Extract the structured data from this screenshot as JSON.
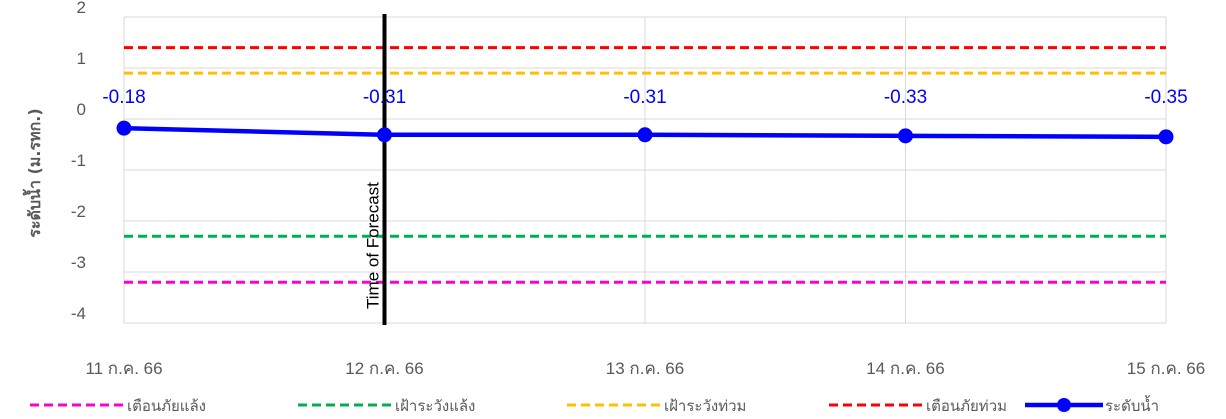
{
  "chart_data": {
    "type": "line",
    "title": "",
    "xlabel": "",
    "ylabel": "ระดับน้ำ (ม.รทก.)",
    "categories": [
      "11 ก.ค. 66",
      "12 ก.ค. 66",
      "13 ก.ค. 66",
      "14 ก.ค. 66",
      "15 ก.ค. 66"
    ],
    "ylim": [
      -4,
      2
    ],
    "yticks": [
      2,
      1,
      0,
      -1,
      -2,
      -3,
      -4
    ],
    "grid": true,
    "legend_position": "bottom",
    "series": [
      {
        "name": "เตือนภัยแล้ง",
        "values": [
          -3.2,
          -3.2,
          -3.2,
          -3.2,
          -3.2
        ],
        "color": "#ff00cc",
        "style": "dashed"
      },
      {
        "name": "เฝ้าระวังแล้ง",
        "values": [
          -2.3,
          -2.3,
          -2.3,
          -2.3,
          -2.3
        ],
        "color": "#00b050",
        "style": "dashed"
      },
      {
        "name": "เฝ้าระวังท่วม",
        "values": [
          0.9,
          0.9,
          0.9,
          0.9,
          0.9
        ],
        "color": "#ffc000",
        "style": "dashed"
      },
      {
        "name": "เตือนภัยท่วม",
        "values": [
          1.4,
          1.4,
          1.4,
          1.4,
          1.4
        ],
        "color": "#ff0000",
        "style": "dashed"
      },
      {
        "name": "ระดับน้ำ",
        "values": [
          -0.18,
          -0.31,
          -0.31,
          -0.33,
          -0.35
        ],
        "color": "#0000ff",
        "style": "solid-marker",
        "data_labels": [
          "-0.18",
          "-0.31",
          "-0.31",
          "-0.33",
          "-0.35"
        ]
      }
    ],
    "annotations": [
      {
        "text": "Time of Forecast",
        "x_category": "12 ก.ค. 66",
        "color": "#000000"
      }
    ]
  }
}
